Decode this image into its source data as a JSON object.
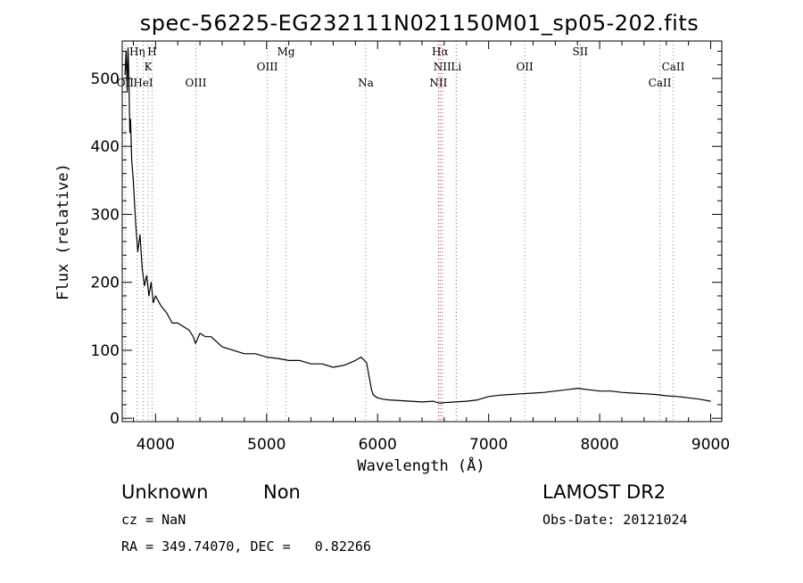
{
  "chart_data": {
    "type": "line",
    "title": "spec-56225-EG232111N021150M01_sp05-202.fits",
    "xlabel": "Wavelength (Å)",
    "ylabel": "Flux (relative)",
    "xlim": [
      3700,
      9100
    ],
    "ylim": [
      -5,
      555
    ],
    "xticks": [
      4000,
      5000,
      6000,
      7000,
      8000,
      9000
    ],
    "yticks": [
      0,
      100,
      200,
      300,
      400,
      500
    ],
    "xtick_labels": [
      "4000",
      "5000",
      "6000",
      "7000",
      "8000",
      "9000"
    ],
    "ytick_labels": [
      "0",
      "100",
      "200",
      "300",
      "400",
      "500"
    ],
    "grid": false,
    "series": [
      {
        "color": "#000000",
        "x": [
          3725,
          3735,
          3745,
          3752,
          3760,
          3768,
          3775,
          3785,
          3800,
          3820,
          3840,
          3860,
          3880,
          3900,
          3920,
          3940,
          3960,
          3980,
          4000,
          4050,
          4100,
          4150,
          4200,
          4250,
          4300,
          4340,
          4360,
          4400,
          4450,
          4500,
          4600,
          4700,
          4800,
          4900,
          5000,
          5100,
          5200,
          5300,
          5400,
          5500,
          5600,
          5700,
          5800,
          5850,
          5900,
          5925,
          5945,
          5960,
          5980,
          6000,
          6050,
          6100,
          6200,
          6300,
          6400,
          6500,
          6562,
          6600,
          6700,
          6800,
          6900,
          7000,
          7100,
          7200,
          7300,
          7400,
          7500,
          7600,
          7700,
          7800,
          7900,
          8000,
          8100,
          8200,
          8300,
          8400,
          8500,
          8600,
          8700,
          8800,
          8900,
          9000
        ],
        "y": [
          505,
          540,
          480,
          545,
          500,
          420,
          440,
          380,
          350,
          290,
          245,
          270,
          220,
          195,
          210,
          180,
          200,
          170,
          180,
          165,
          155,
          140,
          140,
          135,
          130,
          120,
          110,
          125,
          120,
          120,
          105,
          100,
          95,
          95,
          90,
          88,
          85,
          85,
          80,
          80,
          75,
          78,
          85,
          90,
          82,
          60,
          42,
          35,
          32,
          30,
          28,
          27,
          26,
          25,
          24,
          25,
          22,
          23,
          24,
          25,
          27,
          32,
          34,
          35,
          36,
          37,
          38,
          40,
          42,
          44,
          42,
          40,
          40,
          38,
          37,
          36,
          35,
          33,
          32,
          30,
          28,
          25
        ]
      }
    ],
    "spectral_lines": [
      {
        "label": "OII",
        "wave": 3727,
        "row": 3,
        "color": "#888888"
      },
      {
        "label": "Hη",
        "wave": 3835,
        "row": 1,
        "color": "#888888"
      },
      {
        "label": "HeI",
        "wave": 3889,
        "row": 3,
        "color": "#888888"
      },
      {
        "label": "K",
        "wave": 3934,
        "row": 2,
        "color": "#888888"
      },
      {
        "label": "H",
        "wave": 3969,
        "row": 1,
        "color": "#888888"
      },
      {
        "label": "OIII",
        "wave": 4363,
        "row": 3,
        "color": "#888888"
      },
      {
        "label": "OIII",
        "wave": 5007,
        "row": 2,
        "color": "#888888"
      },
      {
        "label": "Mg",
        "wave": 5175,
        "row": 1,
        "color": "#888888"
      },
      {
        "label": "Na",
        "wave": 5893,
        "row": 3,
        "color": "#888888"
      },
      {
        "label": "NII",
        "wave": 6548,
        "row": 3,
        "color": "#cc3333"
      },
      {
        "label": "Hα",
        "wave": 6563,
        "row": 1,
        "color": "#cc3333"
      },
      {
        "label": "NII",
        "wave": 6583,
        "row": 2,
        "color": "#cc3333"
      },
      {
        "label": "Li",
        "wave": 6708,
        "row": 2,
        "color": "#cc3333"
      },
      {
        "label": "OII",
        "wave": 7325,
        "row": 2,
        "color": "#888888"
      },
      {
        "label": "SII",
        "wave": 7825,
        "row": 1,
        "color": "#888888"
      },
      {
        "label": "CaII",
        "wave": 8542,
        "row": 3,
        "color": "#888888"
      },
      {
        "label": "CaII",
        "wave": 8662,
        "row": 2,
        "color": "#888888"
      }
    ]
  },
  "footer": {
    "class_label": "Unknown",
    "subclass_label": "Non",
    "survey": "LAMOST DR2",
    "cz": "cz = NaN",
    "obs_date": "Obs-Date: 20121024",
    "coords": "RA = 349.74070, DEC =   0.82266"
  }
}
